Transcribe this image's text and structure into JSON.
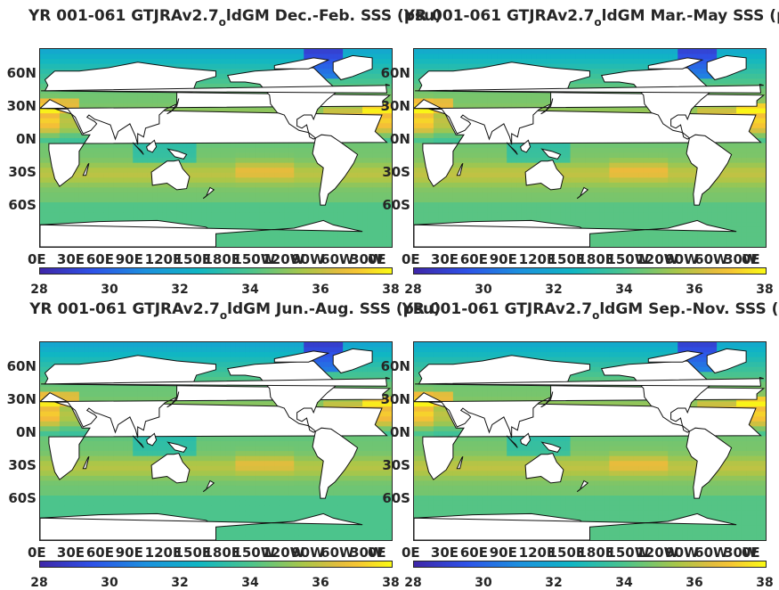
{
  "chart_data": [
    {
      "type": "heatmap",
      "title_pre": "YR 001-061 GTJRAv2.7",
      "title_sub": "o",
      "title_post": "ldGM Dec.-Feb. SSS (psu)",
      "xlabel": "",
      "ylabel": "",
      "x_ticks": [
        "0E",
        "30E",
        "60E",
        "90E",
        "120E",
        "150E",
        "180E",
        "150W",
        "120W",
        "90W",
        "60W",
        "30W",
        "0E"
      ],
      "y_ticks": [
        "60N",
        "30N",
        "0N",
        "30S",
        "60S"
      ],
      "colorbar": {
        "min": 28,
        "max": 38,
        "ticks": [
          "28",
          "30",
          "32",
          "34",
          "36",
          "38"
        ],
        "colormap": "parula"
      },
      "season": "DJF"
    },
    {
      "type": "heatmap",
      "title_pre": "YR 001-061 GTJRAv2.7",
      "title_sub": "o",
      "title_post": "ldGM Mar.-May SSS (psu)",
      "xlabel": "",
      "ylabel": "",
      "x_ticks": [
        "0E",
        "30E",
        "60E",
        "90E",
        "120E",
        "150E",
        "180E",
        "150W",
        "120W",
        "90W",
        "60W",
        "30W",
        "0E"
      ],
      "y_ticks": [
        "60N",
        "30N",
        "0N",
        "30S",
        "60S"
      ],
      "colorbar": {
        "min": 28,
        "max": 38,
        "ticks": [
          "28",
          "30",
          "32",
          "34",
          "36",
          "38"
        ],
        "colormap": "parula"
      },
      "season": "MAM"
    },
    {
      "type": "heatmap",
      "title_pre": "YR 001-061 GTJRAv2.7",
      "title_sub": "o",
      "title_post": "ldGM Jun.-Aug. SSS (psu)",
      "xlabel": "",
      "ylabel": "",
      "x_ticks": [
        "0E",
        "30E",
        "60E",
        "90E",
        "120E",
        "150E",
        "180E",
        "150W",
        "120W",
        "90W",
        "60W",
        "30W",
        "0E"
      ],
      "y_ticks": [
        "60N",
        "30N",
        "0N",
        "30S",
        "60S"
      ],
      "colorbar": {
        "min": 28,
        "max": 38,
        "ticks": [
          "28",
          "30",
          "32",
          "34",
          "36",
          "38"
        ],
        "colormap": "parula"
      },
      "season": "JJA"
    },
    {
      "type": "heatmap",
      "title_pre": "YR 001-061 GTJRAv2.7",
      "title_sub": "o",
      "title_post": "ldGM Sep.-Nov. SSS (psu)",
      "xlabel": "",
      "ylabel": "",
      "x_ticks": [
        "0E",
        "30E",
        "60E",
        "90E",
        "120E",
        "150E",
        "180E",
        "150W",
        "120W",
        "90W",
        "60W",
        "30W",
        "0E"
      ],
      "y_ticks": [
        "60N",
        "30N",
        "0N",
        "30S",
        "60S"
      ],
      "colorbar": {
        "min": 28,
        "max": 38,
        "ticks": [
          "28",
          "30",
          "32",
          "34",
          "36",
          "38"
        ],
        "colormap": "parula"
      },
      "season": "SON"
    }
  ]
}
